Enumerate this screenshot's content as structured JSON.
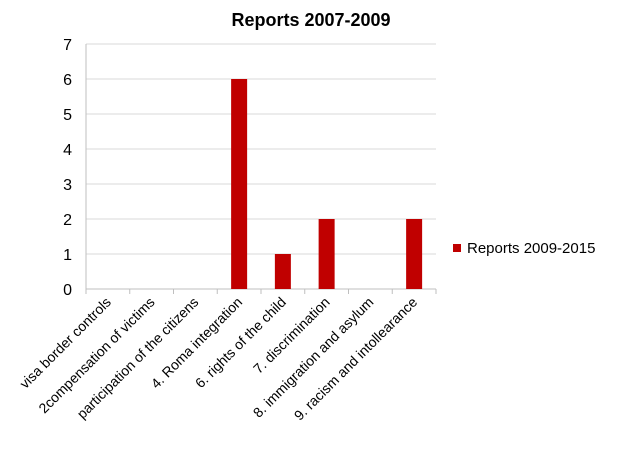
{
  "chart_data": {
    "type": "bar",
    "title": "Reports 2007-2009",
    "categories": [
      "visa border controls",
      "2compensation of victims",
      "participation of the citizens",
      "4. Roma integration",
      "6. rights of the child",
      "7. discrimination",
      "8. immigration and asylum",
      "9. racism and intollearance"
    ],
    "series": [
      {
        "name": "Reports 2009-2015",
        "values": [
          0,
          0,
          0,
          6,
          1,
          2,
          0,
          2
        ],
        "color": "#c00000"
      }
    ],
    "ylim": [
      0,
      7
    ],
    "yticks": [
      0,
      1,
      2,
      3,
      4,
      5,
      6,
      7
    ],
    "grid": true,
    "legend_position": "right",
    "xlabel": "",
    "ylabel": ""
  }
}
